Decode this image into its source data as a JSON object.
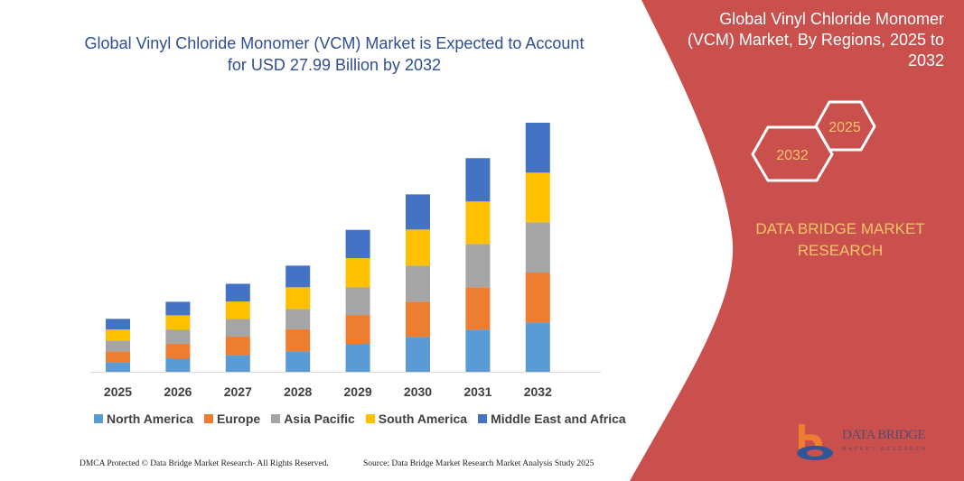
{
  "title": "Global Vinyl Chloride Monomer (VCM) Market is Expected to Account for USD 27.99 Billion by 2032",
  "side_panel": {
    "title": "Global Vinyl Chloride Monomer (VCM) Market, By Regions, 2025 to 2032",
    "hex_labels": [
      "2025",
      "2032"
    ],
    "brand_text": "DATA BRIDGE MARKET RESEARCH",
    "logo_text": "DATA BRIDGE",
    "logo_subtext": "MARKET RESEARCH",
    "panel_color": "#c9504d"
  },
  "footer": {
    "left": "DMCA Protected © Data Bridge Market Research- All Rights Reserved.",
    "right": "Source: Data Bridge Market Research Market Analysis Study 2025"
  },
  "chart_data": {
    "type": "bar",
    "stacked": true,
    "title": "Global Vinyl Chloride Monomer (VCM) Market is Expected to Account for USD 27.99 Billion by 2032",
    "xlabel": "",
    "ylabel": "",
    "unit": "USD Billion (estimated)",
    "grid": false,
    "y_axis_visible": false,
    "legend_position": "bottom",
    "ylim": [
      0,
      27.99
    ],
    "categories": [
      "2025",
      "2026",
      "2027",
      "2028",
      "2029",
      "2030",
      "2031",
      "2032"
    ],
    "series": [
      {
        "name": "North America",
        "color": "#5b9bd5",
        "values": [
          1.08,
          1.52,
          1.89,
          2.3,
          3.14,
          3.92,
          4.73,
          5.54
        ]
      },
      {
        "name": "Europe",
        "color": "#ed7d31",
        "values": [
          1.22,
          1.62,
          2.06,
          2.47,
          3.24,
          3.95,
          4.77,
          5.61
        ]
      },
      {
        "name": "Asia Pacific",
        "color": "#a5a5a5",
        "values": [
          1.22,
          1.62,
          1.99,
          2.3,
          3.11,
          4.06,
          4.87,
          5.65
        ]
      },
      {
        "name": "South America",
        "color": "#ffc000",
        "values": [
          1.25,
          1.59,
          1.96,
          2.43,
          3.28,
          4.06,
          4.77,
          5.58
        ]
      },
      {
        "name": "Middle East and Africa",
        "color": "#4472c4",
        "values": [
          1.18,
          1.52,
          1.99,
          2.43,
          3.18,
          3.95,
          4.87,
          5.61
        ]
      }
    ]
  }
}
